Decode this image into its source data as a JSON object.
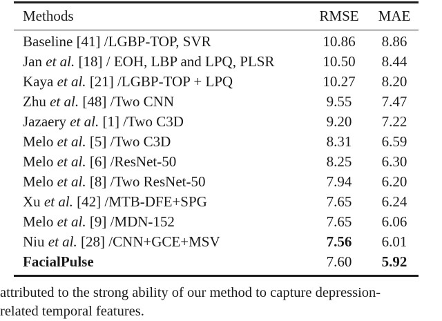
{
  "table": {
    "columns": [
      "Methods",
      "RMSE",
      "MAE"
    ],
    "rows": [
      {
        "name": "Baseline",
        "etal": "",
        "rest": "[41] /LGBP-TOP, SVR",
        "rmse": "10.86",
        "mae": "8.86",
        "bold_name": false,
        "bold_rmse": false,
        "bold_mae": false
      },
      {
        "name": "Jan",
        "etal": "et al.",
        "rest": "[18] / EOH, LBP and LPQ, PLSR",
        "rmse": "10.50",
        "mae": "8.44",
        "bold_name": false,
        "bold_rmse": false,
        "bold_mae": false
      },
      {
        "name": "Kaya",
        "etal": "et al.",
        "rest": "[21] /LGBP-TOP + LPQ",
        "rmse": "10.27",
        "mae": "8.20",
        "bold_name": false,
        "bold_rmse": false,
        "bold_mae": false
      },
      {
        "name": "Zhu",
        "etal": "et al.",
        "rest": "[48] /Two CNN",
        "rmse": "9.55",
        "mae": "7.47",
        "bold_name": false,
        "bold_rmse": false,
        "bold_mae": false
      },
      {
        "name": "Jazaery",
        "etal": "et al.",
        "rest": "[1] /Two C3D",
        "rmse": "9.20",
        "mae": "7.22",
        "bold_name": false,
        "bold_rmse": false,
        "bold_mae": false
      },
      {
        "name": "Melo",
        "etal": "et al.",
        "rest": "[5] /Two C3D",
        "rmse": "8.31",
        "mae": "6.59",
        "bold_name": false,
        "bold_rmse": false,
        "bold_mae": false
      },
      {
        "name": "Melo",
        "etal": "et al.",
        "rest": "[6] /ResNet-50",
        "rmse": "8.25",
        "mae": "6.30",
        "bold_name": false,
        "bold_rmse": false,
        "bold_mae": false
      },
      {
        "name": "Melo",
        "etal": "et al.",
        "rest": "[8] /Two ResNet-50",
        "rmse": "7.94",
        "mae": "6.20",
        "bold_name": false,
        "bold_rmse": false,
        "bold_mae": false
      },
      {
        "name": "Xu",
        "etal": "et al.",
        "rest": "[42] /MTB-DFE+SPG",
        "rmse": "7.65",
        "mae": "6.24",
        "bold_name": false,
        "bold_rmse": false,
        "bold_mae": false
      },
      {
        "name": "Melo",
        "etal": "et al.",
        "rest": "[9] /MDN-152",
        "rmse": "7.65",
        "mae": "6.06",
        "bold_name": false,
        "bold_rmse": false,
        "bold_mae": false
      },
      {
        "name": "Niu",
        "etal": "et al.",
        "rest": "[28] /CNN+GCE+MSV",
        "rmse": "7.56",
        "mae": "6.01",
        "bold_name": false,
        "bold_rmse": true,
        "bold_mae": false
      },
      {
        "name": "FacialPulse",
        "etal": "",
        "rest": "",
        "rmse": "7.60",
        "mae": "5.92",
        "bold_name": true,
        "bold_rmse": false,
        "bold_mae": true
      }
    ]
  },
  "caption": {
    "line1": "attributed to the strong ability of our method to capture depression-",
    "line2": "related temporal features."
  },
  "colors": {
    "text": "#1a1a1a",
    "background": "#ffffff"
  }
}
